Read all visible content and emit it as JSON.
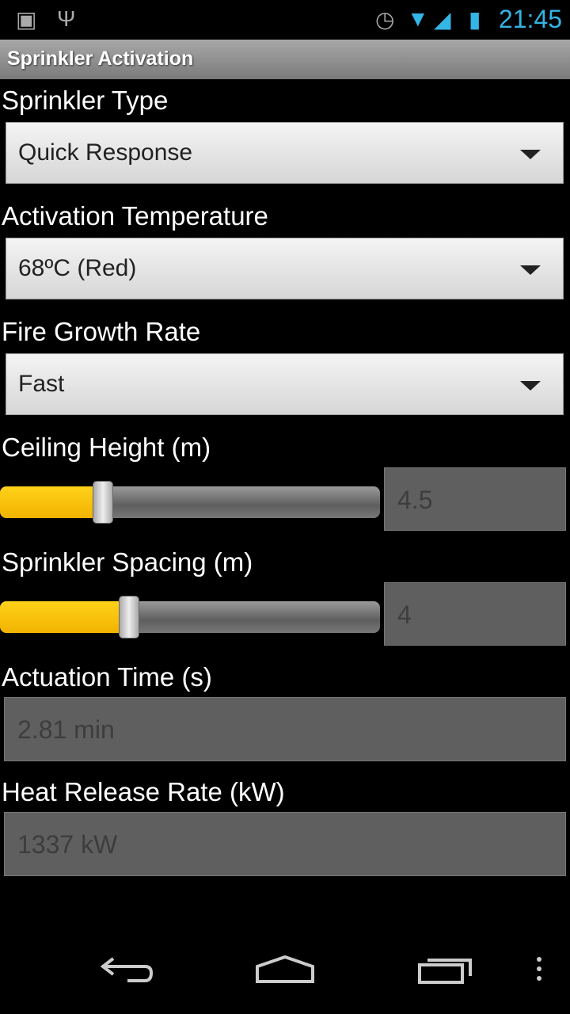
{
  "status_bar": {
    "time": "21:45",
    "icons": [
      "android-debug-icon",
      "usb-icon",
      "alarm-icon",
      "wifi-icon",
      "signal-icon",
      "battery-charging-icon"
    ],
    "time_color": "#33b5e5"
  },
  "title": "Sprinkler Activation",
  "fields": {
    "sprinkler_type": {
      "label": "Sprinkler Type",
      "value": "Quick Response"
    },
    "activation_temperature": {
      "label": "Activation Temperature",
      "value": "68ºC (Red)"
    },
    "fire_growth_rate": {
      "label": "Fire Growth Rate",
      "value": "Fast"
    },
    "ceiling_height": {
      "label": "Ceiling Height (m)",
      "value": "4.5",
      "slider_fraction": 0.27
    },
    "sprinkler_spacing": {
      "label": "Sprinkler Spacing (m)",
      "value": "4",
      "slider_fraction": 0.34
    },
    "actuation_time": {
      "label": "Actuation Time (s)",
      "value": "2.81 min"
    },
    "heat_release_rate": {
      "label": "Heat Release Rate (kW)",
      "value": "1337 kW"
    }
  },
  "accent_color": "#f5b800",
  "nav": [
    "back-icon",
    "home-icon",
    "recent-apps-icon",
    "overflow-menu-icon"
  ]
}
